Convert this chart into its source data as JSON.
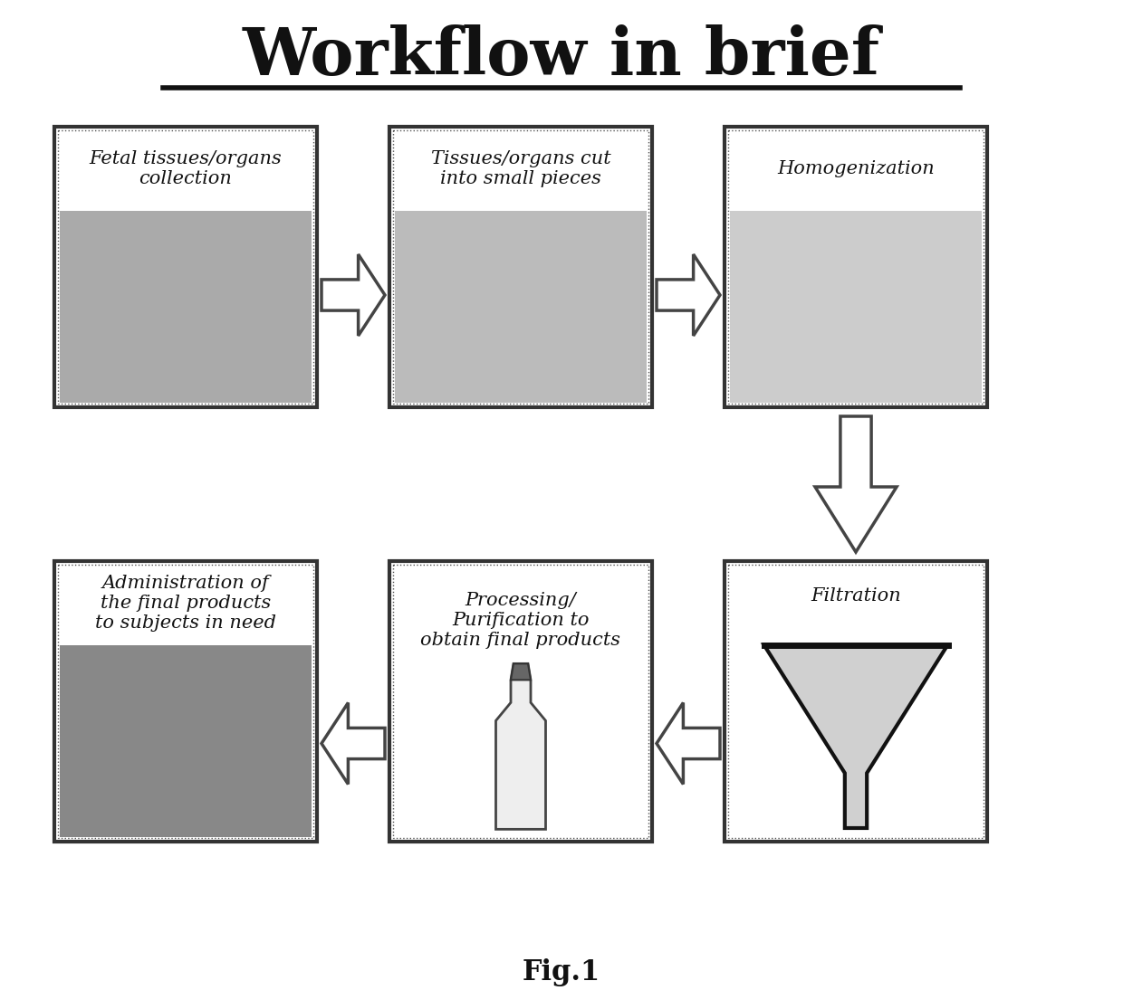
{
  "title": "Workflow in brief",
  "fig_label": "Fig.1",
  "background_color": "#ffffff",
  "title_fontsize": 52,
  "title_fontweight": "bold",
  "boxes": [
    {
      "id": "box1",
      "label": "Fetal tissues/organs\ncollection",
      "col": 0,
      "row": 0,
      "img_color": "#aaaaaa"
    },
    {
      "id": "box2",
      "label": "Tissues/organs cut\ninto small pieces",
      "col": 1,
      "row": 0,
      "img_color": "#bbbbbb"
    },
    {
      "id": "box3",
      "label": "Homogenization",
      "col": 2,
      "row": 0,
      "img_color": "#cccccc"
    },
    {
      "id": "box4",
      "label": "Administration of\nthe final products\nto subjects in need",
      "col": 0,
      "row": 1,
      "img_color": "#888888"
    },
    {
      "id": "box5",
      "label": "Processing/\nPurification to\nobtain final products",
      "col": 1,
      "row": 1,
      "img_color": "#dddddd"
    },
    {
      "id": "box6",
      "label": "Filtration",
      "col": 2,
      "row": 1,
      "img_color": "#eeeeee"
    }
  ],
  "label_fontsize": 15,
  "label_color": "#111111"
}
